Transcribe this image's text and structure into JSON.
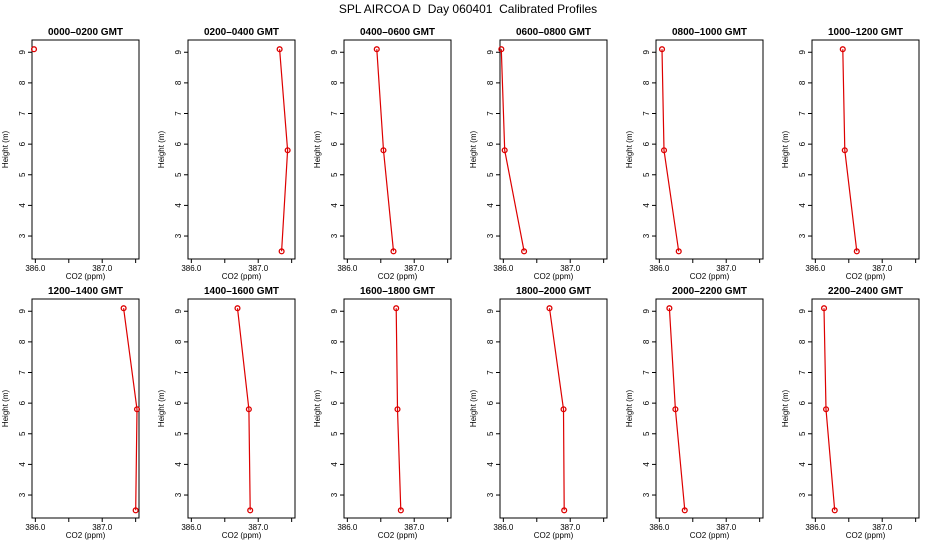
{
  "title": "SPL AIRCOA D  Day 060401  Calibrated Profiles",
  "colors": {
    "profile": "#dd0000",
    "axis": "#000000"
  },
  "chart_data": {
    "type": "line",
    "xlabel": "CO2 (ppm)",
    "ylabel": "Height (m)",
    "xlim": [
      385.95,
      387.55
    ],
    "ylim": [
      2.25,
      9.4
    ],
    "xticks": [
      386.0,
      386.5,
      387.0,
      387.5
    ],
    "xtick_labels": [
      "386.0",
      "",
      "387.0",
      ""
    ],
    "yticks": [
      3,
      4,
      5,
      6,
      7,
      8,
      9
    ],
    "ytick_labels": [
      "3",
      "4",
      "5",
      "6",
      "7",
      "8",
      "9"
    ],
    "panels": [
      {
        "title": "0000–0200 GMT",
        "points": [
          {
            "x": 385.98,
            "y": 9.1
          }
        ]
      },
      {
        "title": "0200–0400 GMT",
        "points": [
          {
            "x": 387.32,
            "y": 9.1
          },
          {
            "x": 387.44,
            "y": 5.8
          },
          {
            "x": 387.35,
            "y": 2.5
          }
        ]
      },
      {
        "title": "0400–0600 GMT",
        "points": [
          {
            "x": 386.44,
            "y": 9.1
          },
          {
            "x": 386.54,
            "y": 5.8
          },
          {
            "x": 386.69,
            "y": 2.5
          }
        ]
      },
      {
        "title": "0600–0800 GMT",
        "points": [
          {
            "x": 385.97,
            "y": 9.1
          },
          {
            "x": 386.02,
            "y": 5.8
          },
          {
            "x": 386.31,
            "y": 2.5
          }
        ]
      },
      {
        "title": "0800–1000 GMT",
        "points": [
          {
            "x": 386.04,
            "y": 9.1
          },
          {
            "x": 386.07,
            "y": 5.8
          },
          {
            "x": 386.29,
            "y": 2.5
          }
        ]
      },
      {
        "title": "1000–1200 GMT",
        "points": [
          {
            "x": 386.41,
            "y": 9.1
          },
          {
            "x": 386.44,
            "y": 5.8
          },
          {
            "x": 386.62,
            "y": 2.5
          }
        ]
      },
      {
        "title": "1200–1400 GMT",
        "points": [
          {
            "x": 387.32,
            "y": 9.1
          },
          {
            "x": 387.52,
            "y": 5.8
          },
          {
            "x": 387.5,
            "y": 2.5
          }
        ]
      },
      {
        "title": "1400–1600 GMT",
        "points": [
          {
            "x": 386.69,
            "y": 9.1
          },
          {
            "x": 386.86,
            "y": 5.8
          },
          {
            "x": 386.88,
            "y": 2.5
          }
        ]
      },
      {
        "title": "1600–1800 GMT",
        "points": [
          {
            "x": 386.73,
            "y": 9.1
          },
          {
            "x": 386.75,
            "y": 5.8
          },
          {
            "x": 386.8,
            "y": 2.5
          }
        ]
      },
      {
        "title": "1800–2000 GMT",
        "points": [
          {
            "x": 386.69,
            "y": 9.1
          },
          {
            "x": 386.9,
            "y": 5.8
          },
          {
            "x": 386.91,
            "y": 2.5
          }
        ]
      },
      {
        "title": "2000–2200 GMT",
        "points": [
          {
            "x": 386.15,
            "y": 9.1
          },
          {
            "x": 386.24,
            "y": 5.8
          },
          {
            "x": 386.38,
            "y": 2.5
          }
        ]
      },
      {
        "title": "2200–2400 GMT",
        "points": [
          {
            "x": 386.13,
            "y": 9.1
          },
          {
            "x": 386.16,
            "y": 5.8
          },
          {
            "x": 386.29,
            "y": 2.5
          }
        ]
      }
    ]
  }
}
